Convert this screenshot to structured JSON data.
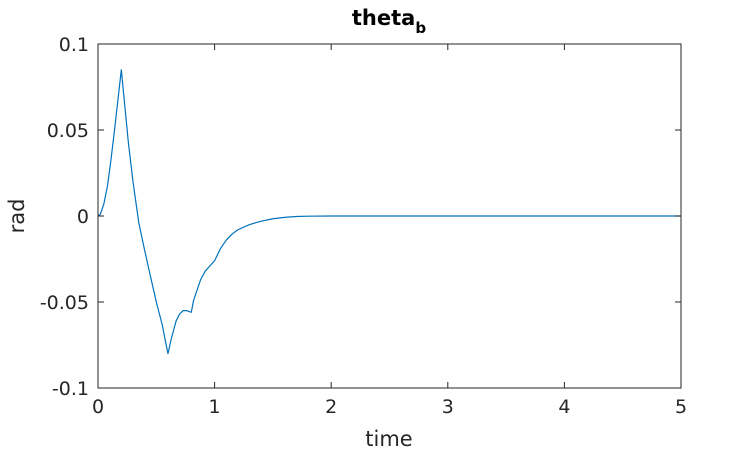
{
  "chart_data": {
    "type": "line",
    "title": "theta",
    "title_subscript": "b",
    "xlabel": "time",
    "ylabel": "rad",
    "xlim": [
      0,
      5
    ],
    "ylim": [
      -0.1,
      0.1
    ],
    "xticks": [
      0,
      1,
      2,
      3,
      4,
      5
    ],
    "xtick_labels": [
      "0",
      "1",
      "2",
      "3",
      "4",
      "5"
    ],
    "yticks": [
      -0.1,
      -0.05,
      0,
      0.05,
      0.1
    ],
    "ytick_labels": [
      "-0.1",
      "-0.05",
      "0",
      "0.05",
      "0.1"
    ],
    "grid": false,
    "box": true,
    "line_color": "#0072BD",
    "series": [
      {
        "x": [
          0,
          0.02,
          0.05,
          0.08,
          0.11,
          0.14,
          0.17,
          0.2,
          0.23,
          0.26,
          0.3,
          0.35,
          0.4,
          0.45,
          0.5,
          0.55,
          0.6,
          0.63,
          0.67,
          0.7,
          0.73,
          0.76,
          0.8,
          0.82,
          0.85,
          0.88,
          0.92,
          0.96,
          1.0,
          1.05,
          1.1,
          1.15,
          1.2,
          1.3,
          1.4,
          1.5,
          1.6,
          1.7,
          1.8,
          2.0,
          2.5,
          3.0,
          3.5,
          4.0,
          4.5,
          5.0
        ],
        "y": [
          0,
          0.001,
          0.007,
          0.017,
          0.032,
          0.049,
          0.067,
          0.085,
          0.064,
          0.043,
          0.02,
          -0.004,
          -0.02,
          -0.035,
          -0.05,
          -0.063,
          -0.08,
          -0.071,
          -0.061,
          -0.057,
          -0.055,
          -0.055,
          -0.056,
          -0.049,
          -0.043,
          -0.037,
          -0.032,
          -0.029,
          -0.026,
          -0.019,
          -0.014,
          -0.0105,
          -0.008,
          -0.005,
          -0.003,
          -0.0016,
          -0.0008,
          -0.0003,
          -0.0001,
          0,
          0,
          0,
          0,
          0,
          0,
          0
        ]
      }
    ]
  }
}
